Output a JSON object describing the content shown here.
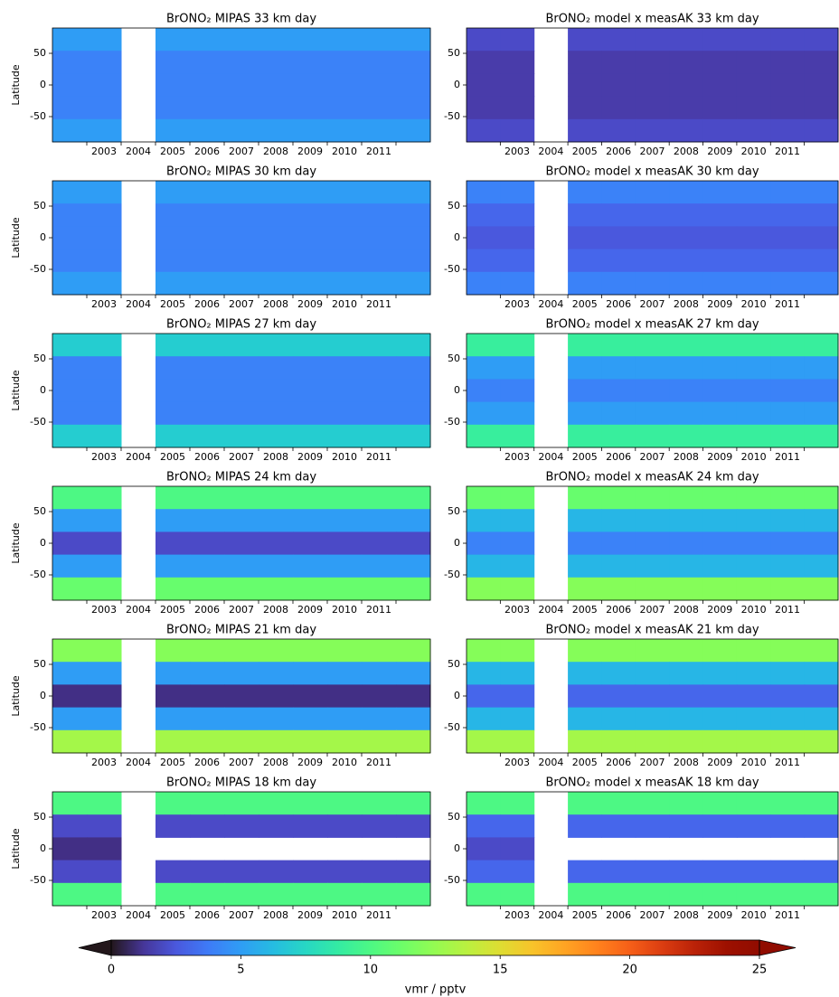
{
  "chart_data": [
    {
      "type": "heatmap",
      "title": "BrONO₂ MIPAS  33 km day",
      "ylabel": "Latitude",
      "categories": [
        null,
        "2003",
        "2004",
        "2005",
        "2006",
        "2007",
        "2008",
        "2009",
        "2010",
        "2011",
        null
      ],
      "y": [
        72,
        36,
        0,
        -36,
        -72
      ],
      "ylim": [
        -90,
        90
      ],
      "yticks": [
        -50,
        0,
        50
      ],
      "values": [
        [
          5,
          5,
          null,
          5,
          5,
          5,
          5,
          5,
          5,
          5,
          5
        ],
        [
          4,
          4,
          null,
          4,
          4,
          4,
          4,
          4,
          4,
          4,
          4
        ],
        [
          4,
          4,
          null,
          4,
          4,
          4,
          4,
          4,
          4,
          4,
          4
        ],
        [
          4,
          4,
          null,
          4,
          4,
          4,
          4,
          4,
          4,
          4,
          4
        ],
        [
          5,
          5,
          null,
          5,
          5,
          5,
          5,
          5,
          5,
          5,
          5
        ]
      ]
    },
    {
      "type": "heatmap",
      "title": "BrONO₂ model x measAK  33 km  day",
      "categories": [
        null,
        "2003",
        "2004",
        "2005",
        "2006",
        "2007",
        "2008",
        "2009",
        "2010",
        "2011",
        null
      ],
      "y": [
        72,
        36,
        0,
        -36,
        -72
      ],
      "ylim": [
        -90,
        90
      ],
      "yticks": [
        -50,
        0,
        50
      ],
      "values": [
        [
          2,
          2,
          null,
          2,
          2,
          2,
          2,
          2,
          2,
          2,
          2
        ],
        [
          1.5,
          1.5,
          null,
          1.5,
          1.5,
          1.5,
          1.5,
          1.5,
          1.5,
          1.5,
          1.5
        ],
        [
          1.5,
          1.5,
          null,
          1.5,
          1.5,
          1.5,
          1.5,
          1.5,
          1.5,
          1.5,
          1.5
        ],
        [
          1.5,
          1.5,
          null,
          1.5,
          1.5,
          1.5,
          1.5,
          1.5,
          1.5,
          1.5,
          1.5
        ],
        [
          2,
          2,
          null,
          2,
          2,
          2,
          2,
          2,
          2,
          2,
          2
        ]
      ]
    },
    {
      "type": "heatmap",
      "title": "BrONO₂ MIPAS  30 km day",
      "ylabel": "Latitude",
      "categories": [
        null,
        "2003",
        "2004",
        "2005",
        "2006",
        "2007",
        "2008",
        "2009",
        "2010",
        "2011",
        null
      ],
      "y": [
        72,
        36,
        0,
        -36,
        -72
      ],
      "ylim": [
        -90,
        90
      ],
      "yticks": [
        -50,
        0,
        50
      ],
      "values": [
        [
          5,
          5,
          null,
          5,
          5,
          5,
          5,
          5,
          5,
          5,
          5
        ],
        [
          4,
          4,
          null,
          4,
          4,
          4,
          4,
          4,
          4,
          4,
          4
        ],
        [
          4,
          4,
          null,
          4,
          4,
          4,
          4,
          4,
          4,
          4,
          4
        ],
        [
          4,
          4,
          null,
          4,
          4,
          4,
          4,
          4,
          4,
          4,
          4
        ],
        [
          5,
          5,
          null,
          5,
          5,
          5,
          5,
          5,
          5,
          5,
          5
        ]
      ]
    },
    {
      "type": "heatmap",
      "title": "BrONO₂ model x measAK  30 km  day",
      "categories": [
        null,
        "2003",
        "2004",
        "2005",
        "2006",
        "2007",
        "2008",
        "2009",
        "2010",
        "2011",
        null
      ],
      "y": [
        72,
        36,
        0,
        -36,
        -72
      ],
      "ylim": [
        -90,
        90
      ],
      "yticks": [
        -50,
        0,
        50
      ],
      "values": [
        [
          4,
          4,
          null,
          4,
          4,
          4,
          4,
          4,
          4,
          4,
          4
        ],
        [
          3,
          3,
          null,
          3,
          3,
          3,
          3,
          3,
          3,
          3,
          3
        ],
        [
          2.5,
          2.5,
          null,
          2.5,
          2.5,
          2.5,
          2.5,
          2.5,
          2.5,
          2.5,
          2.5
        ],
        [
          3,
          3,
          null,
          3,
          3,
          3,
          3,
          3,
          3,
          3,
          3
        ],
        [
          4,
          4,
          null,
          4,
          4,
          4,
          4,
          4,
          4,
          4,
          4
        ]
      ]
    },
    {
      "type": "heatmap",
      "title": "BrONO₂ MIPAS  27 km day",
      "ylabel": "Latitude",
      "categories": [
        null,
        "2003",
        "2004",
        "2005",
        "2006",
        "2007",
        "2008",
        "2009",
        "2010",
        "2011",
        null
      ],
      "y": [
        72,
        36,
        0,
        -36,
        -72
      ],
      "ylim": [
        -90,
        90
      ],
      "yticks": [
        -50,
        0,
        50
      ],
      "values": [
        [
          7,
          7,
          null,
          7,
          7,
          7,
          7,
          7,
          7,
          7,
          7
        ],
        [
          4,
          4,
          null,
          4,
          4,
          4,
          4,
          4,
          4,
          4,
          4
        ],
        [
          4,
          4,
          null,
          4,
          4,
          4,
          4,
          4,
          4,
          4,
          4
        ],
        [
          4,
          4,
          null,
          4,
          4,
          4,
          4,
          4,
          4,
          4,
          4
        ],
        [
          7,
          7,
          null,
          7,
          7,
          7,
          7,
          7,
          7,
          7,
          7
        ]
      ]
    },
    {
      "type": "heatmap",
      "title": "BrONO₂ model x measAK  27 km  day",
      "categories": [
        null,
        "2003",
        "2004",
        "2005",
        "2006",
        "2007",
        "2008",
        "2009",
        "2010",
        "2011",
        null
      ],
      "y": [
        72,
        36,
        0,
        -36,
        -72
      ],
      "ylim": [
        -90,
        90
      ],
      "yticks": [
        -50,
        0,
        50
      ],
      "values": [
        [
          9,
          9,
          null,
          9,
          9,
          9,
          9,
          9,
          9,
          9,
          9
        ],
        [
          5,
          5,
          null,
          5,
          5,
          5,
          5,
          5,
          5,
          5,
          5
        ],
        [
          4,
          4,
          null,
          4,
          4,
          4,
          4,
          4,
          4,
          4,
          4
        ],
        [
          5,
          5,
          null,
          5,
          5,
          5,
          5,
          5,
          5,
          5,
          5
        ],
        [
          9,
          9,
          null,
          9,
          9,
          9,
          9,
          9,
          9,
          9,
          9
        ]
      ]
    },
    {
      "type": "heatmap",
      "title": "BrONO₂ MIPAS  24 km day",
      "ylabel": "Latitude",
      "categories": [
        null,
        "2003",
        "2004",
        "2005",
        "2006",
        "2007",
        "2008",
        "2009",
        "2010",
        "2011",
        null
      ],
      "y": [
        72,
        36,
        0,
        -36,
        -72
      ],
      "ylim": [
        -90,
        90
      ],
      "yticks": [
        -50,
        0,
        50
      ],
      "values": [
        [
          10,
          10,
          null,
          10,
          10,
          10,
          10,
          10,
          10,
          10,
          10
        ],
        [
          5,
          5,
          null,
          5,
          5,
          5,
          5,
          5,
          5,
          5,
          5
        ],
        [
          2,
          2,
          null,
          2,
          2,
          2,
          2,
          2,
          2,
          2,
          2
        ],
        [
          5,
          5,
          null,
          5,
          5,
          5,
          5,
          5,
          5,
          5,
          5
        ],
        [
          11,
          11,
          null,
          11,
          11,
          11,
          11,
          11,
          11,
          11,
          11
        ]
      ]
    },
    {
      "type": "heatmap",
      "title": "BrONO₂ model x measAK  24 km  day",
      "categories": [
        null,
        "2003",
        "2004",
        "2005",
        "2006",
        "2007",
        "2008",
        "2009",
        "2010",
        "2011",
        null
      ],
      "y": [
        72,
        36,
        0,
        -36,
        -72
      ],
      "ylim": [
        -90,
        90
      ],
      "yticks": [
        -50,
        0,
        50
      ],
      "values": [
        [
          11,
          11,
          null,
          11,
          11,
          11,
          11,
          11,
          11,
          11,
          11
        ],
        [
          6,
          6,
          null,
          6,
          6,
          6,
          6,
          6,
          6,
          6,
          6
        ],
        [
          4,
          4,
          null,
          4,
          4,
          4,
          4,
          4,
          4,
          4,
          4
        ],
        [
          6,
          6,
          null,
          6,
          6,
          6,
          6,
          6,
          6,
          6,
          6
        ],
        [
          12,
          12,
          null,
          12,
          12,
          12,
          12,
          12,
          12,
          12,
          12
        ]
      ]
    },
    {
      "type": "heatmap",
      "title": "BrONO₂ MIPAS  21 km day",
      "ylabel": "Latitude",
      "categories": [
        null,
        "2003",
        "2004",
        "2005",
        "2006",
        "2007",
        "2008",
        "2009",
        "2010",
        "2011",
        null
      ],
      "y": [
        72,
        36,
        0,
        -36,
        -72
      ],
      "ylim": [
        -90,
        90
      ],
      "yticks": [
        -50,
        0,
        50
      ],
      "values": [
        [
          12,
          12,
          null,
          12,
          12,
          12,
          12,
          12,
          12,
          12,
          12
        ],
        [
          5,
          5,
          null,
          5,
          5,
          5,
          5,
          5,
          5,
          5,
          5
        ],
        [
          1,
          1,
          null,
          1,
          1,
          1,
          1,
          1,
          1,
          1,
          1
        ],
        [
          5,
          5,
          null,
          5,
          5,
          5,
          5,
          5,
          5,
          5,
          5
        ],
        [
          13,
          13,
          null,
          13,
          13,
          13,
          13,
          13,
          13,
          13,
          13
        ]
      ]
    },
    {
      "type": "heatmap",
      "title": "BrONO₂ model x measAK  21 km  day",
      "categories": [
        null,
        "2003",
        "2004",
        "2005",
        "2006",
        "2007",
        "2008",
        "2009",
        "2010",
        "2011",
        null
      ],
      "y": [
        72,
        36,
        0,
        -36,
        -72
      ],
      "ylim": [
        -90,
        90
      ],
      "yticks": [
        -50,
        0,
        50
      ],
      "values": [
        [
          12,
          12,
          null,
          12,
          12,
          12,
          12,
          12,
          12,
          12,
          12
        ],
        [
          6,
          6,
          null,
          6,
          6,
          6,
          6,
          6,
          6,
          6,
          6
        ],
        [
          3,
          3,
          null,
          3,
          3,
          3,
          3,
          3,
          3,
          3,
          3
        ],
        [
          6,
          6,
          null,
          6,
          6,
          6,
          6,
          6,
          6,
          6,
          6
        ],
        [
          13,
          13,
          null,
          13,
          13,
          13,
          13,
          13,
          13,
          13,
          13
        ]
      ]
    },
    {
      "type": "heatmap",
      "title": "BrONO₂ MIPAS  18 km day",
      "ylabel": "Latitude",
      "categories": [
        null,
        "2003",
        "2004",
        "2005",
        "2006",
        "2007",
        "2008",
        "2009",
        "2010",
        "2011",
        null
      ],
      "y": [
        72,
        36,
        0,
        -36,
        -72
      ],
      "ylim": [
        -90,
        90
      ],
      "yticks": [
        -50,
        0,
        50
      ],
      "values": [
        [
          10,
          10,
          null,
          10,
          10,
          10,
          10,
          10,
          10,
          10,
          10
        ],
        [
          2,
          2,
          null,
          2,
          2,
          2,
          2,
          2,
          2,
          2,
          2
        ],
        [
          1,
          1,
          null,
          null,
          null,
          null,
          null,
          null,
          null,
          null,
          null
        ],
        [
          2,
          2,
          null,
          2,
          2,
          2,
          2,
          2,
          2,
          2,
          2
        ],
        [
          10,
          10,
          null,
          10,
          10,
          10,
          10,
          10,
          10,
          10,
          10
        ]
      ]
    },
    {
      "type": "heatmap",
      "title": "BrONO₂ model x measAK  18 km  day",
      "categories": [
        null,
        "2003",
        "2004",
        "2005",
        "2006",
        "2007",
        "2008",
        "2009",
        "2010",
        "2011",
        null
      ],
      "y": [
        72,
        36,
        0,
        -36,
        -72
      ],
      "ylim": [
        -90,
        90
      ],
      "yticks": [
        -50,
        0,
        50
      ],
      "values": [
        [
          10,
          10,
          null,
          10,
          10,
          10,
          10,
          10,
          10,
          10,
          10
        ],
        [
          3,
          3,
          null,
          3,
          3,
          3,
          3,
          3,
          3,
          3,
          3
        ],
        [
          2,
          2,
          null,
          null,
          null,
          null,
          null,
          null,
          null,
          null,
          null
        ],
        [
          3,
          3,
          null,
          3,
          3,
          3,
          3,
          3,
          3,
          3,
          3
        ],
        [
          10,
          10,
          null,
          10,
          10,
          10,
          10,
          10,
          10,
          10,
          10
        ]
      ]
    }
  ],
  "colorbar": {
    "label": "vmr / pptv",
    "lim": [
      0,
      25
    ],
    "ticks": [
      0,
      5,
      10,
      15,
      20,
      25
    ],
    "extend": "both",
    "colormap": "turbo"
  }
}
